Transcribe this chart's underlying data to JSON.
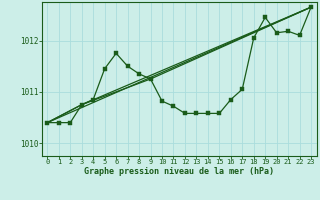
{
  "title": "Graphe pression niveau de la mer (hPa)",
  "bg_color": "#cceee8",
  "grid_color": "#aadddd",
  "line_color": "#1a5c1a",
  "xlim": [
    -0.5,
    23.5
  ],
  "ylim": [
    1009.75,
    1012.75
  ],
  "yticks": [
    1010,
    1011,
    1012
  ],
  "xticks": [
    0,
    1,
    2,
    3,
    4,
    5,
    6,
    7,
    8,
    9,
    10,
    11,
    12,
    13,
    14,
    15,
    16,
    17,
    18,
    19,
    20,
    21,
    22,
    23
  ],
  "series1_x": [
    0,
    1,
    2,
    3,
    4,
    5,
    6,
    7,
    8,
    9,
    10,
    11,
    12,
    13,
    14,
    15,
    16,
    17,
    18,
    19,
    20,
    21,
    22,
    23
  ],
  "series1_y": [
    1010.4,
    1010.4,
    1010.4,
    1010.75,
    1010.85,
    1011.45,
    1011.75,
    1011.5,
    1011.35,
    1011.25,
    1010.82,
    1010.72,
    1010.58,
    1010.58,
    1010.58,
    1010.58,
    1010.85,
    1011.05,
    1012.05,
    1012.45,
    1012.15,
    1012.18,
    1012.1,
    1012.65
  ],
  "series2_x": [
    0,
    23
  ],
  "series2_y": [
    1010.4,
    1012.65
  ],
  "series3_x": [
    0,
    3,
    23
  ],
  "series3_y": [
    1010.4,
    1010.75,
    1012.65
  ],
  "series4_x": [
    0,
    3,
    9,
    23
  ],
  "series4_y": [
    1010.4,
    1010.75,
    1011.25,
    1012.65
  ]
}
